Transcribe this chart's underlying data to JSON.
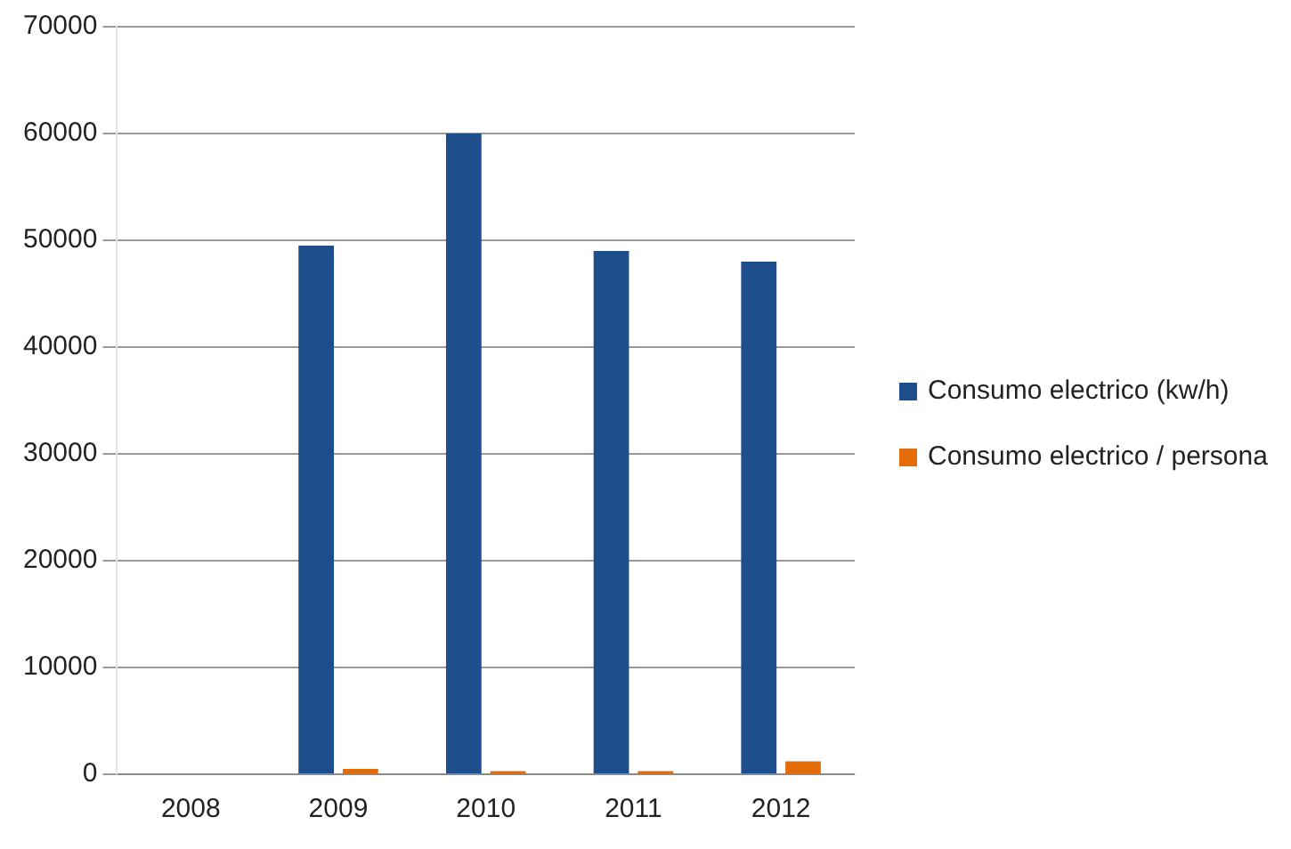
{
  "chart_data": {
    "type": "bar",
    "categories": [
      "2008",
      "2009",
      "2010",
      "2011",
      "2012"
    ],
    "series": [
      {
        "name": "Consumo electrico (kw/h)",
        "color": "#1f4e8c",
        "values": [
          0,
          49500,
          60000,
          49000,
          48000
        ]
      },
      {
        "name": "Consumo electrico / persona",
        "color": "#e36c09",
        "values": [
          0,
          500,
          300,
          300,
          1200
        ]
      }
    ],
    "ylim": [
      0,
      70000
    ],
    "yticks": [
      0,
      10000,
      20000,
      30000,
      40000,
      50000,
      60000,
      70000
    ],
    "grid": "y",
    "legend": "right"
  }
}
